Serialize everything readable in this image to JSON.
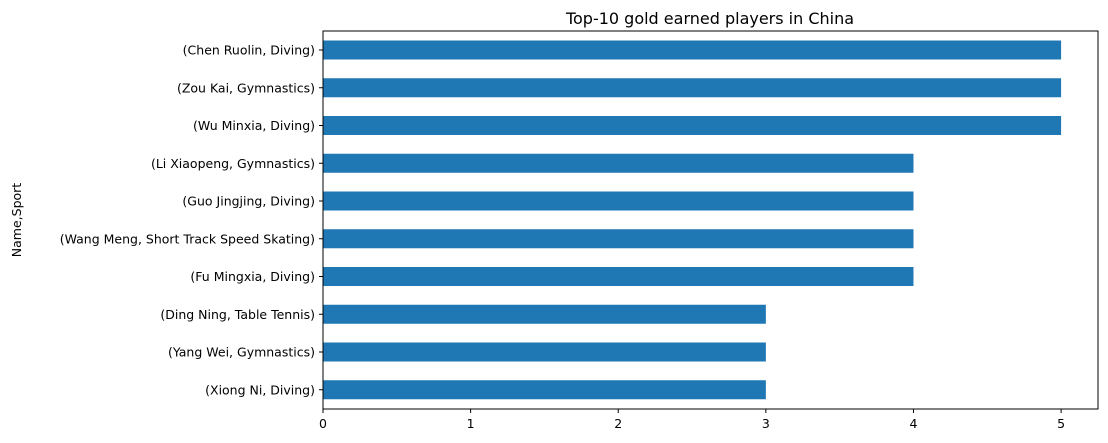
{
  "chart_data": {
    "type": "bar",
    "orientation": "horizontal",
    "title": "Top-10 gold earned players in China",
    "xlabel": "",
    "ylabel": "Name,Sport",
    "xlim": [
      0,
      5.25
    ],
    "xticks": [
      "0",
      "1",
      "2",
      "3",
      "4",
      "5"
    ],
    "categories": [
      "(Chen Ruolin, Diving)",
      "(Zou Kai, Gymnastics)",
      "(Wu Minxia, Diving)",
      "(Li Xiaopeng, Gymnastics)",
      "(Guo Jingjing, Diving)",
      "(Wang Meng, Short Track Speed Skating)",
      "(Fu Mingxia, Diving)",
      "(Ding Ning, Table Tennis)",
      "(Yang Wei, Gymnastics)",
      "(Xiong Ni, Diving)"
    ],
    "values": [
      5,
      5,
      5,
      4,
      4,
      4,
      4,
      3,
      3,
      3
    ],
    "bar_color": "#1f77b4",
    "grid": false,
    "legend": "none"
  }
}
